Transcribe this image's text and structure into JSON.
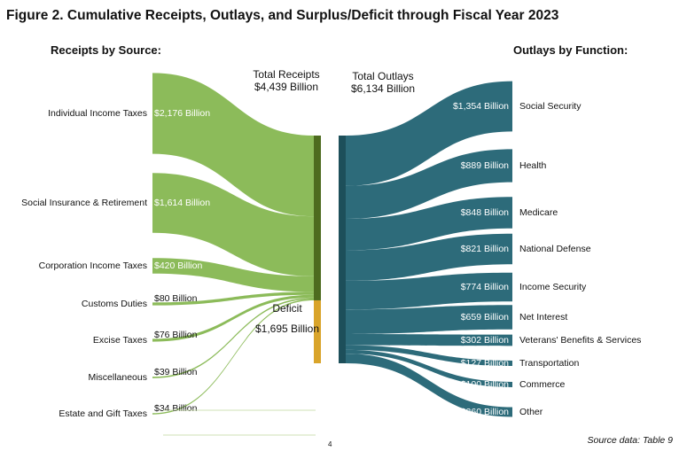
{
  "title": "Figure 2. Cumulative Receipts, Outlays, and Surplus/Deficit through Fiscal Year 2023",
  "receipts_heading": "Receipts by Source:",
  "outlays_heading": "Outlays by Function:",
  "total_receipts": {
    "label": "Total Receipts",
    "value": "$4,439 Billion"
  },
  "total_outlays": {
    "label": "Total Outlays",
    "value": "$6,134 Billion"
  },
  "deficit": {
    "label": "Deficit",
    "value": "$1,695 Billion"
  },
  "source_note": "Source data: Table 9",
  "page_number": "4",
  "colors": {
    "receipts_flow": "#8cbb5a",
    "receipts_bar": "#4d6b1f",
    "deficit_bar": "#d9a42a",
    "outlays_flow": "#2d6b7a",
    "outlays_bar": "#1d4f5a"
  },
  "chart_data": {
    "type": "sankey",
    "unit": "Billion",
    "receipts": [
      {
        "name": "Individual Income Taxes",
        "value": 2176,
        "value_label": "$2,176 Billion"
      },
      {
        "name": "Social Insurance & Retirement",
        "value": 1614,
        "value_label": "$1,614 Billion"
      },
      {
        "name": "Corporation Income Taxes",
        "value": 420,
        "value_label": "$420 Billion"
      },
      {
        "name": "Customs Duties",
        "value": 80,
        "value_label": "$80 Billion"
      },
      {
        "name": "Excise Taxes",
        "value": 76,
        "value_label": "$76 Billion"
      },
      {
        "name": "Miscellaneous",
        "value": 39,
        "value_label": "$39 Billion"
      },
      {
        "name": "Estate and Gift Taxes",
        "value": 34,
        "value_label": "$34 Billion"
      }
    ],
    "total_receipts": 4439,
    "deficit": 1695,
    "total_outlays": 6134,
    "outlays": [
      {
        "name": "Social Security",
        "value": 1354,
        "value_label": "$1,354 Billion"
      },
      {
        "name": "Health",
        "value": 889,
        "value_label": "$889 Billion"
      },
      {
        "name": "Medicare",
        "value": 848,
        "value_label": "$848 Billion"
      },
      {
        "name": "National Defense",
        "value": 821,
        "value_label": "$821 Billion"
      },
      {
        "name": "Income Security",
        "value": 774,
        "value_label": "$774 Billion"
      },
      {
        "name": "Net Interest",
        "value": 659,
        "value_label": "$659 Billion"
      },
      {
        "name": "Veterans' Benefits & Services",
        "value": 302,
        "value_label": "$302 Billion"
      },
      {
        "name": "Transportation",
        "value": 127,
        "value_label": "$127 Billion"
      },
      {
        "name": "Commerce",
        "value": 100,
        "value_label": "$100 Billion"
      },
      {
        "name": "Other",
        "value": 260,
        "value_label": "$260 Billion"
      }
    ]
  }
}
